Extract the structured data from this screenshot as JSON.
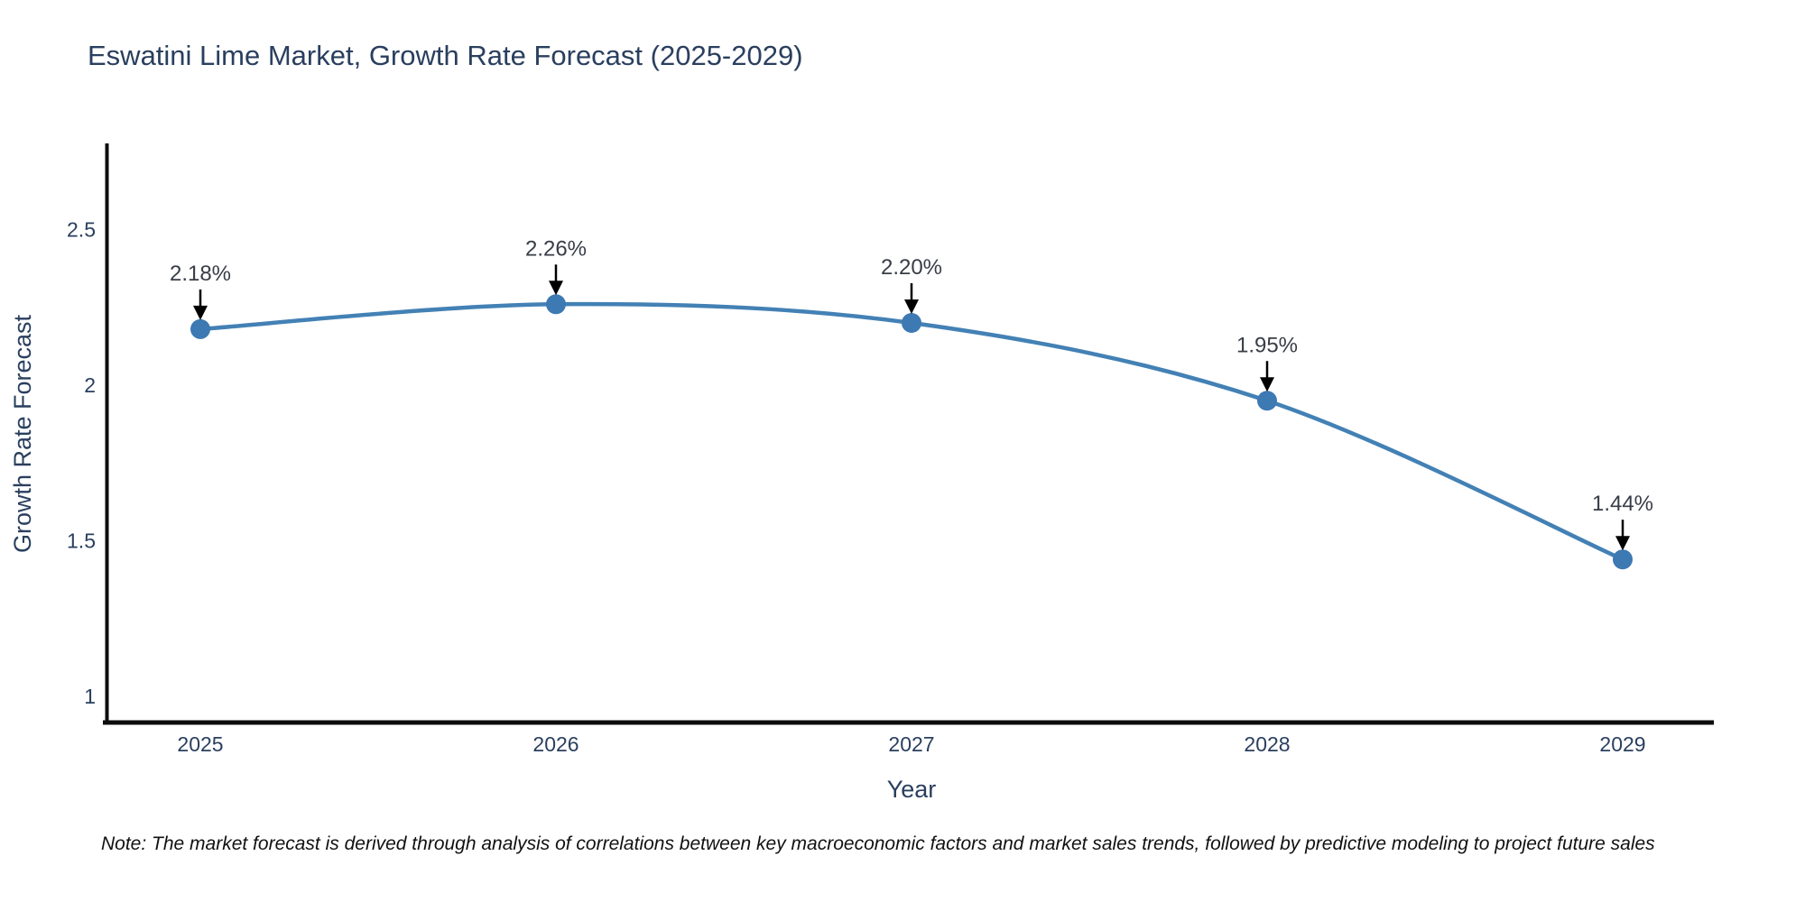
{
  "chart_data": {
    "type": "line",
    "title": "Eswatini Lime Market, Growth Rate Forecast (2025-2029)",
    "xlabel": "Year",
    "ylabel": "Growth Rate Forecast",
    "categories": [
      "2025",
      "2026",
      "2027",
      "2028",
      "2029"
    ],
    "series": [
      {
        "name": "Growth Rate Forecast",
        "values": [
          2.18,
          2.26,
          2.2,
          1.95,
          1.44
        ]
      }
    ],
    "point_labels": [
      "2.18%",
      "2.26%",
      "2.20%",
      "1.95%",
      "1.44%"
    ],
    "yticks": [
      {
        "value": 1,
        "label": "1"
      },
      {
        "value": 1.5,
        "label": "1.5"
      },
      {
        "value": 2,
        "label": "2"
      },
      {
        "value": 2.5,
        "label": "2.5"
      }
    ],
    "ylim": [
      0.92,
      2.78
    ],
    "grid": false,
    "legend": false,
    "line_shape": "spline",
    "annotation_arrows": "down",
    "colors": {
      "line": "#4381b5",
      "marker": "#3d79b3",
      "axis_line": "#0d0d0d",
      "title_text": "#2a3f5f",
      "tick_text": "#2a3f5f",
      "annotation_text": "#383d47",
      "arrow": "#000000",
      "background": "#ffffff"
    }
  },
  "note": {
    "text": "Note: The market forecast is derived through analysis of correlations between key macroeconomic factors and market sales trends, followed by predictive modeling to project future sales"
  }
}
